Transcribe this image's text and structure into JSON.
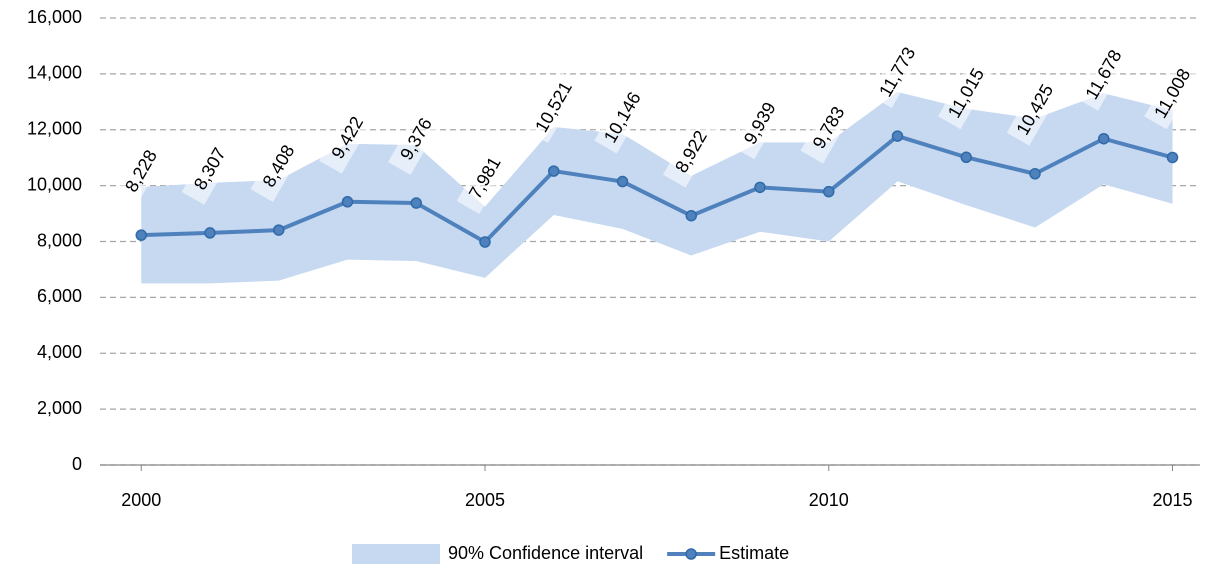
{
  "chart_data": {
    "type": "line",
    "x": [
      2000,
      2001,
      2002,
      2003,
      2004,
      2005,
      2006,
      2007,
      2008,
      2009,
      2010,
      2011,
      2012,
      2013,
      2014,
      2015
    ],
    "xlim": [
      1999.4,
      2015.4
    ],
    "xticks": [
      2000,
      2005,
      2010,
      2015
    ],
    "ylim": [
      0,
      16000
    ],
    "yticks": [
      0,
      {
        "value": 2000,
        "label": "2,000"
      },
      {
        "value": 4000,
        "label": "4,000"
      },
      {
        "value": 6000,
        "label": "6,000"
      },
      {
        "value": 8000,
        "label": "8,000"
      },
      {
        "value": 10000,
        "label": "10,000"
      },
      {
        "value": 12000,
        "label": "12,000"
      },
      {
        "value": 14000,
        "label": "14,000"
      },
      {
        "value": 16000,
        "label": "16,000"
      }
    ],
    "grid": true,
    "legend": "bottom",
    "series": [
      {
        "name": "90% Confidence interval",
        "color": "#c6d9f1",
        "type": "band",
        "lower": [
          6500,
          6500,
          6600,
          7350,
          7300,
          6700,
          8950,
          8450,
          7500,
          8350,
          8000,
          10150,
          9300,
          8500,
          10050,
          9350
        ],
        "upper": [
          9950,
          10100,
          10200,
          11500,
          11450,
          9250,
          12100,
          11850,
          10350,
          11550,
          11550,
          13350,
          12750,
          12400,
          13300,
          12700
        ]
      },
      {
        "name": "Estimate",
        "color": "#4f81bd",
        "type": "line",
        "values": [
          8228,
          8307,
          8408,
          9422,
          9376,
          7981,
          10521,
          10146,
          8922,
          9939,
          9783,
          11773,
          11015,
          10425,
          11678,
          11008
        ],
        "value_labels": [
          "8,228",
          "8,307",
          "8,408",
          "9,422",
          "9,376",
          "7,981",
          "10,521",
          "10,146",
          "8,922",
          "9,939",
          "9,783",
          "11,773",
          "11,015",
          "10,425",
          "11,678",
          "11,008"
        ]
      }
    ]
  }
}
